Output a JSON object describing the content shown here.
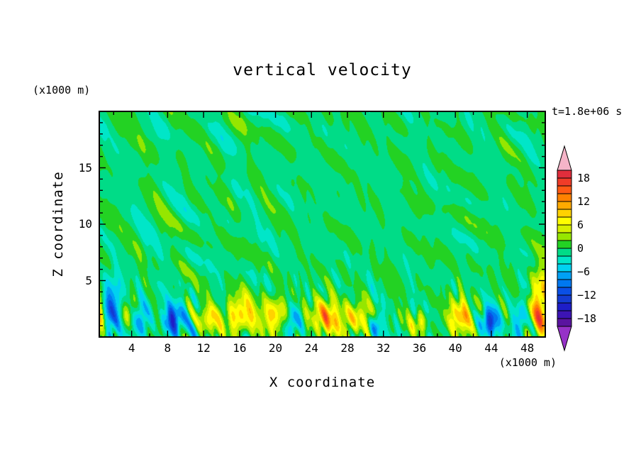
{
  "title": "vertical velocity",
  "annotations": {
    "time": "t=1.8e+06 s"
  },
  "axes": {
    "x_label": "X coordinate",
    "y_label": "Z coordinate",
    "x_unit": "(x1000 m)",
    "y_unit": "(x1000 m)",
    "x_ticks": [
      4,
      8,
      12,
      16,
      20,
      24,
      28,
      32,
      36,
      40,
      44,
      48
    ],
    "y_ticks": [
      5,
      10,
      15
    ],
    "x_range": [
      0.4,
      50
    ],
    "y_range": [
      0,
      20
    ]
  },
  "colorbar": {
    "labels": [
      "18",
      "12",
      "6",
      "0",
      "−6",
      "−12",
      "−18"
    ],
    "values": [
      18,
      12,
      6,
      0,
      -6,
      -12,
      -18
    ],
    "levels_min": -20,
    "levels_max": 20,
    "step": 2,
    "arrow_high_color": "#f5b4c8",
    "arrow_low_color": "#9632c8",
    "colors": [
      "#5a14a0",
      "#3c14b4",
      "#1e1ec8",
      "#143cd2",
      "#0a50e6",
      "#0078f0",
      "#00a0f5",
      "#00d2f0",
      "#00e6c8",
      "#00dc87",
      "#23d223",
      "#96e600",
      "#d7f000",
      "#ffff00",
      "#ffd200",
      "#ffaa00",
      "#ff8200",
      "#ff5a14",
      "#f03c28",
      "#e12e3c"
    ]
  },
  "chart_data": {
    "type": "heatmap",
    "subtype": "filled-contour",
    "title": "vertical velocity",
    "xlabel": "X coordinate (x1000 m)",
    "ylabel": "Z coordinate (x1000 m)",
    "time_label": "t=1.8e+06 s",
    "x_range": [
      0.4,
      50
    ],
    "z_range": [
      0,
      20
    ],
    "value_range": [
      -20,
      20
    ],
    "contour_interval": 2,
    "background_band": [
      -2,
      0
    ],
    "description": "Field is near zero (two green bands) through most of the domain; strong alternating updrafts (yellow/orange, +6 to +13) and downdrafts (cyan/blue, -6 to -12) confined below z=5.",
    "field_synthesis": {
      "seed": 77031,
      "bias": -0.4,
      "interior_amp": 1.0,
      "bottom_amp": 2.0,
      "bottom_scale_z": 4.5,
      "n_low_modes": 30,
      "n_high_modes": 25
    },
    "features": [
      {
        "x": 0.2,
        "z": 2.3,
        "sx": 0.7,
        "sz": 2.4,
        "amp": 11
      },
      {
        "x": 1.9,
        "z": 2.6,
        "sx": 1.1,
        "sz": 2.8,
        "amp": -8.5
      },
      {
        "x": 3.6,
        "z": 2.0,
        "sx": 0.9,
        "sz": 1.3,
        "amp": 6.5
      },
      {
        "x": 5.0,
        "z": 1.7,
        "sx": 1.1,
        "sz": 1.6,
        "amp": -7.5
      },
      {
        "x": 8.6,
        "z": 1.5,
        "sx": 1.0,
        "sz": 1.4,
        "amp": -12
      },
      {
        "x": 12.6,
        "z": 1.6,
        "sx": 1.0,
        "sz": 1.2,
        "amp": 7.5
      },
      {
        "x": 16.0,
        "z": 1.9,
        "sx": 1.7,
        "sz": 1.7,
        "amp": 10.5
      },
      {
        "x": 19.9,
        "z": 2.0,
        "sx": 1.4,
        "sz": 1.5,
        "amp": 9
      },
      {
        "x": 21.9,
        "z": 1.3,
        "sx": 0.7,
        "sz": 1.3,
        "amp": -7.5
      },
      {
        "x": 25.6,
        "z": 1.8,
        "sx": 1.6,
        "sz": 1.6,
        "amp": 11
      },
      {
        "x": 28.9,
        "z": 1.6,
        "sx": 1.7,
        "sz": 1.3,
        "amp": 8.5
      },
      {
        "x": 31.3,
        "z": 1.1,
        "sx": 0.7,
        "sz": 1.1,
        "amp": -7
      },
      {
        "x": 36.0,
        "z": 1.3,
        "sx": 0.9,
        "sz": 1.0,
        "amp": 6
      },
      {
        "x": 40.6,
        "z": 1.8,
        "sx": 1.4,
        "sz": 1.5,
        "amp": 10.5
      },
      {
        "x": 43.9,
        "z": 1.4,
        "sx": 0.9,
        "sz": 1.3,
        "amp": -11.5
      },
      {
        "x": 47.4,
        "z": 1.9,
        "sx": 0.8,
        "sz": 1.9,
        "amp": -8
      },
      {
        "x": 49.5,
        "z": 2.6,
        "sx": 1.3,
        "sz": 3.0,
        "amp": 13.5
      }
    ]
  }
}
